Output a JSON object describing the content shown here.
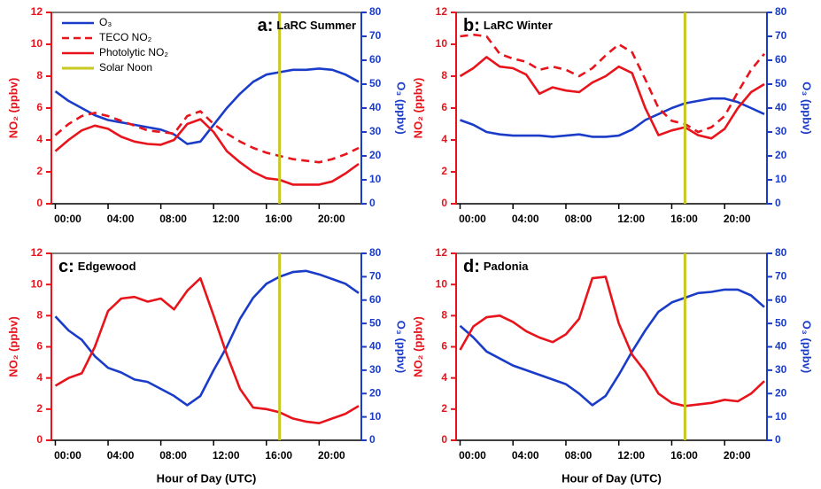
{
  "chart_data": [
    {
      "type": "line",
      "panel_label": "a:",
      "title": "LaRC Summer",
      "ylabel": "NO₂ (ppbv)",
      "y2label": "O₃ (ppbv)",
      "x": [
        0,
        1,
        2,
        3,
        4,
        5,
        6,
        7,
        8,
        9,
        10,
        11,
        12,
        13,
        14,
        15,
        16,
        17,
        18,
        19,
        20,
        21,
        22,
        23
      ],
      "xlim": [
        -0.3,
        23.2
      ],
      "xticks": [
        {
          "value": 0,
          "label": "00:00"
        },
        {
          "value": 4,
          "label": "04:00"
        },
        {
          "value": 8,
          "label": "08:00"
        },
        {
          "value": 12,
          "label": "12:00"
        },
        {
          "value": 16,
          "label": "16:00"
        },
        {
          "value": 20,
          "label": "20:00"
        }
      ],
      "ylim": [
        0,
        12
      ],
      "yticks": [
        0,
        2,
        4,
        6,
        8,
        10,
        12
      ],
      "y2lim": [
        0,
        80
      ],
      "y2ticks": [
        0,
        10,
        20,
        30,
        40,
        50,
        60,
        70,
        80
      ],
      "legend": "upper left",
      "series": [
        {
          "name": "O₃",
          "color": "#1a3cc8",
          "axis": "y2",
          "values": [
            47,
            43,
            40,
            37,
            35,
            34,
            33,
            32,
            31,
            29,
            25,
            26,
            33,
            40,
            46,
            51,
            54,
            55,
            56,
            56,
            56.5,
            56,
            54,
            51
          ]
        },
        {
          "name": "TECO NO₂",
          "color": "#e8141c",
          "dash": true,
          "values": [
            4.3,
            5.0,
            5.5,
            5.7,
            5.5,
            5.2,
            4.9,
            4.6,
            4.5,
            4.4,
            5.5,
            5.8,
            5.0,
            4.4,
            3.9,
            3.5,
            3.2,
            3.0,
            2.8,
            2.7,
            2.6,
            2.8,
            3.1,
            3.5
          ]
        },
        {
          "name": "Photolytic NO₂",
          "color": "#e8141c",
          "values": [
            3.3,
            4.0,
            4.6,
            4.9,
            4.7,
            4.2,
            3.9,
            3.75,
            3.7,
            4.0,
            5.0,
            5.3,
            4.5,
            3.3,
            2.6,
            2.0,
            1.6,
            1.5,
            1.2,
            1.2,
            1.2,
            1.4,
            1.9,
            2.5
          ]
        }
      ],
      "vlines": [
        {
          "name": "Solar Noon",
          "color": "#c8c820",
          "x": 17
        }
      ]
    },
    {
      "type": "line",
      "panel_label": "b:",
      "title": "LaRC Winter",
      "ylabel": "NO₂ (ppbv)",
      "y2label": "O₃ (ppbv)",
      "x": [
        0,
        1,
        2,
        3,
        4,
        5,
        6,
        7,
        8,
        9,
        10,
        11,
        12,
        13,
        14,
        15,
        16,
        17,
        18,
        19,
        20,
        21,
        22,
        23
      ],
      "xlim": [
        -0.3,
        23.2
      ],
      "xticks": [
        {
          "value": 0,
          "label": "00:00"
        },
        {
          "value": 4,
          "label": "04:00"
        },
        {
          "value": 8,
          "label": "08:00"
        },
        {
          "value": 12,
          "label": "12:00"
        },
        {
          "value": 16,
          "label": "16:00"
        },
        {
          "value": 20,
          "label": "20:00"
        }
      ],
      "ylim": [
        0,
        12
      ],
      "yticks": [
        0,
        2,
        4,
        6,
        8,
        10,
        12
      ],
      "y2lim": [
        0,
        80
      ],
      "y2ticks": [
        0,
        10,
        20,
        30,
        40,
        50,
        60,
        70,
        80
      ],
      "series": [
        {
          "color": "#1a3cc8",
          "axis": "y2",
          "values": [
            35,
            33,
            30,
            29,
            28.5,
            28.5,
            28.5,
            28,
            28.5,
            29,
            28,
            28,
            28.5,
            31,
            35,
            37.5,
            40,
            42,
            43,
            44,
            44,
            42.5,
            40,
            37.5
          ]
        },
        {
          "color": "#e8141c",
          "dash": true,
          "values": [
            10.5,
            10.6,
            10.5,
            9.4,
            9.1,
            8.9,
            8.4,
            8.6,
            8.4,
            8.0,
            8.5,
            9.3,
            10.0,
            9.5,
            7.8,
            6.0,
            5.2,
            5.0,
            4.5,
            4.8,
            5.5,
            7.0,
            8.4,
            9.4
          ]
        },
        {
          "color": "#e8141c",
          "values": [
            8.0,
            8.5,
            9.2,
            8.6,
            8.5,
            8.1,
            6.9,
            7.3,
            7.1,
            7.0,
            7.6,
            8.0,
            8.6,
            8.2,
            6.0,
            4.3,
            4.6,
            4.8,
            4.3,
            4.1,
            4.7,
            6.0,
            7.0,
            7.5
          ]
        }
      ],
      "vlines": [
        {
          "color": "#c8c820",
          "x": 17
        }
      ]
    },
    {
      "type": "line",
      "panel_label": "c:",
      "title": "Edgewood",
      "ylabel": "NO₂ (ppbv)",
      "y2label": "O₃ (ppbv)",
      "xlabel": "Hour of Day (UTC)",
      "x": [
        0,
        1,
        2,
        3,
        4,
        5,
        6,
        7,
        8,
        9,
        10,
        11,
        12,
        13,
        14,
        15,
        16,
        17,
        18,
        19,
        20,
        21,
        22,
        23
      ],
      "xlim": [
        -0.3,
        23.2
      ],
      "xticks": [
        {
          "value": 0,
          "label": "00:00"
        },
        {
          "value": 4,
          "label": "04:00"
        },
        {
          "value": 8,
          "label": "08:00"
        },
        {
          "value": 12,
          "label": "12:00"
        },
        {
          "value": 16,
          "label": "16:00"
        },
        {
          "value": 20,
          "label": "20:00"
        }
      ],
      "ylim": [
        0,
        12
      ],
      "yticks": [
        0,
        2,
        4,
        6,
        8,
        10,
        12
      ],
      "y2lim": [
        0,
        80
      ],
      "y2ticks": [
        0,
        10,
        20,
        30,
        40,
        50,
        60,
        70,
        80
      ],
      "series": [
        {
          "color": "#1a3cc8",
          "axis": "y2",
          "values": [
            53,
            47,
            43,
            36,
            31,
            29,
            26,
            25,
            22,
            19,
            15,
            19,
            30,
            40,
            52,
            61,
            67,
            70,
            72,
            72.5,
            71,
            69,
            67,
            63
          ]
        },
        {
          "color": "#e8141c",
          "values": [
            3.5,
            4.0,
            4.3,
            6.0,
            8.3,
            9.1,
            9.2,
            8.9,
            9.1,
            8.4,
            9.6,
            10.4,
            8.0,
            5.5,
            3.3,
            2.1,
            2.0,
            1.8,
            1.4,
            1.2,
            1.1,
            1.4,
            1.7,
            2.2
          ]
        }
      ],
      "vlines": [
        {
          "color": "#c8c820",
          "x": 17
        }
      ]
    },
    {
      "type": "line",
      "panel_label": "d:",
      "title": "Padonia",
      "ylabel": "NO₂ (ppbv)",
      "y2label": "O₃ (ppbv)",
      "xlabel": "Hour of Day (UTC)",
      "x": [
        0,
        1,
        2,
        3,
        4,
        5,
        6,
        7,
        8,
        9,
        10,
        11,
        12,
        13,
        14,
        15,
        16,
        17,
        18,
        19,
        20,
        21,
        22,
        23
      ],
      "xlim": [
        -0.3,
        23.2
      ],
      "xticks": [
        {
          "value": 0,
          "label": "00:00"
        },
        {
          "value": 4,
          "label": "04:00"
        },
        {
          "value": 8,
          "label": "08:00"
        },
        {
          "value": 12,
          "label": "12:00"
        },
        {
          "value": 16,
          "label": "16:00"
        },
        {
          "value": 20,
          "label": "20:00"
        }
      ],
      "ylim": [
        0,
        12
      ],
      "yticks": [
        0,
        2,
        4,
        6,
        8,
        10,
        12
      ],
      "y2lim": [
        0,
        80
      ],
      "y2ticks": [
        0,
        10,
        20,
        30,
        40,
        50,
        60,
        70,
        80
      ],
      "series": [
        {
          "color": "#1a3cc8",
          "axis": "y2",
          "values": [
            49,
            44,
            38,
            35,
            32,
            30,
            28,
            26,
            24,
            20,
            15,
            19,
            28,
            38,
            47,
            55,
            59,
            61,
            63,
            63.5,
            64.5,
            64.5,
            62,
            57
          ]
        },
        {
          "color": "#e8141c",
          "values": [
            5.8,
            7.3,
            7.9,
            8.0,
            7.6,
            7.0,
            6.6,
            6.3,
            6.8,
            7.8,
            10.4,
            10.5,
            7.5,
            5.5,
            4.4,
            3.0,
            2.4,
            2.2,
            2.3,
            2.4,
            2.6,
            2.5,
            3.0,
            3.8
          ]
        }
      ],
      "vlines": [
        {
          "color": "#c8c820",
          "x": 17
        }
      ]
    }
  ]
}
